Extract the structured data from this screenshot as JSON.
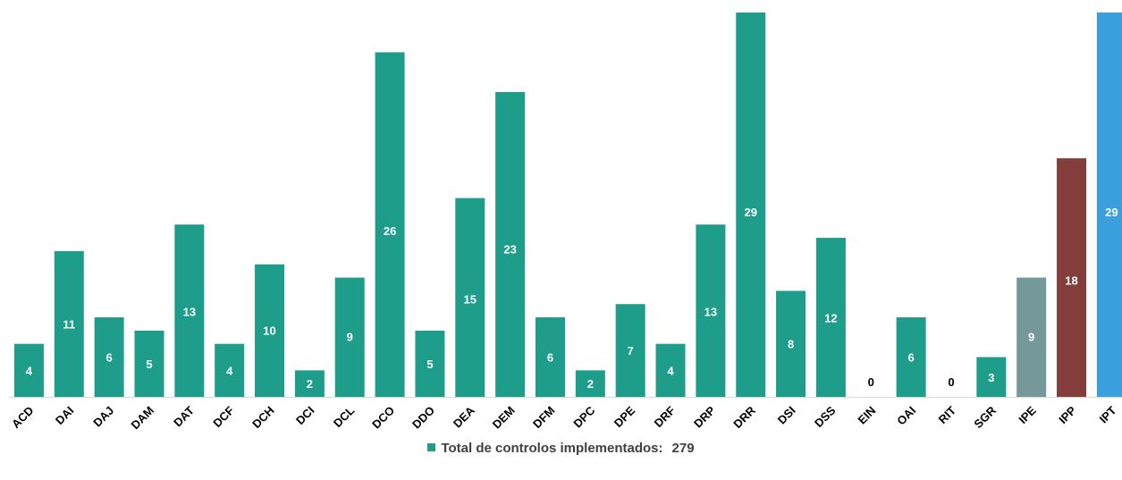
{
  "chart_data": {
    "type": "bar",
    "categories": [
      "ACD",
      "DAI",
      "DAJ",
      "DAM",
      "DAT",
      "DCF",
      "DCH",
      "DCI",
      "DCL",
      "DCO",
      "DDO",
      "DEA",
      "DEM",
      "DFM",
      "DPC",
      "DPE",
      "DRF",
      "DRP",
      "DRR",
      "DSI",
      "DSS",
      "EIN",
      "OAI",
      "RIT",
      "SGR",
      "IPE",
      "IPP",
      "IPT"
    ],
    "values": [
      4,
      11,
      6,
      5,
      13,
      4,
      10,
      2,
      9,
      26,
      5,
      15,
      23,
      6,
      2,
      7,
      4,
      13,
      29,
      8,
      12,
      0,
      6,
      0,
      3,
      9,
      18,
      29
    ],
    "bar_colors": [
      "#1e9e8a",
      "#1e9e8a",
      "#1e9e8a",
      "#1e9e8a",
      "#1e9e8a",
      "#1e9e8a",
      "#1e9e8a",
      "#1e9e8a",
      "#1e9e8a",
      "#1e9e8a",
      "#1e9e8a",
      "#1e9e8a",
      "#1e9e8a",
      "#1e9e8a",
      "#1e9e8a",
      "#1e9e8a",
      "#1e9e8a",
      "#1e9e8a",
      "#1e9e8a",
      "#1e9e8a",
      "#1e9e8a",
      "#1e9e8a",
      "#1e9e8a",
      "#1e9e8a",
      "#1e9e8a",
      "#75999b",
      "#833d3b",
      "#3a9fdd"
    ],
    "label_colors": [
      "#ffffff",
      "#ffffff",
      "#ffffff",
      "#ffffff",
      "#ffffff",
      "#ffffff",
      "#ffffff",
      "#ffffff",
      "#ffffff",
      "#ffffff",
      "#ffffff",
      "#ffffff",
      "#ffffff",
      "#ffffff",
      "#ffffff",
      "#ffffff",
      "#ffffff",
      "#ffffff",
      "#ffffff",
      "#ffffff",
      "#ffffff",
      "#000000",
      "#ffffff",
      "#000000",
      "#ffffff",
      "#ffffff",
      "#ffffff",
      "#ffffff"
    ],
    "ylim": [
      0,
      29
    ],
    "grid": false,
    "legend_position": "bottom",
    "xlabel": "",
    "ylabel": ""
  },
  "legend": {
    "label": "Total de controlos implementados:",
    "total": "279",
    "swatch_color": "#1e9e8a"
  }
}
